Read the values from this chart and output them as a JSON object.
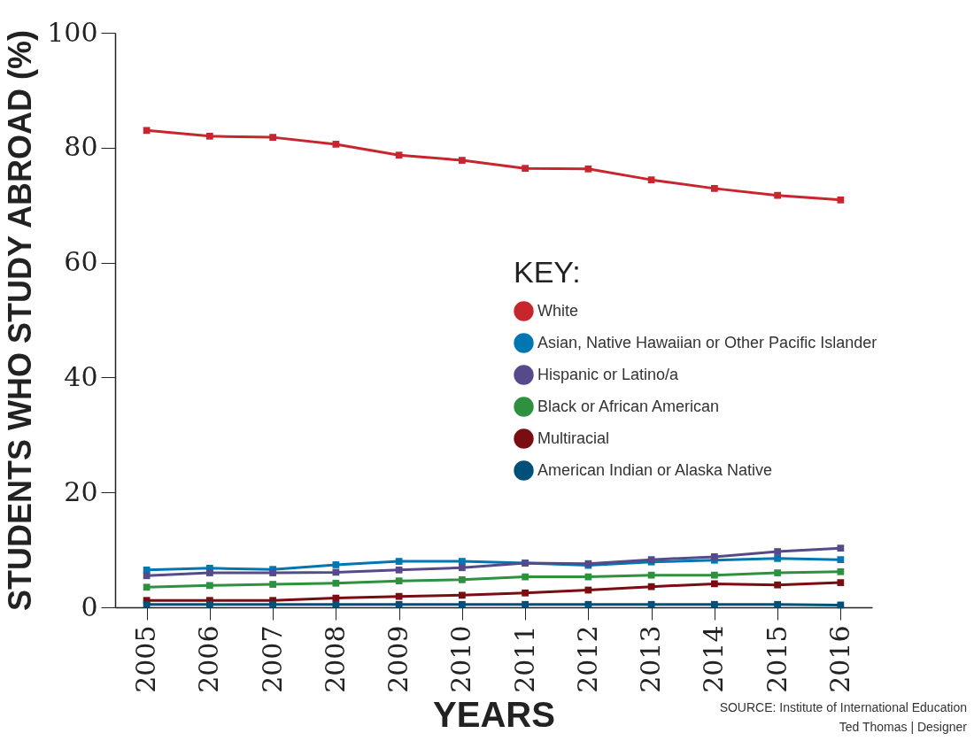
{
  "chart_data": {
    "type": "line",
    "xlabel": "YEARS",
    "ylabel": "STUDENTS WHO STUDY ABROAD (%)",
    "legend_title": "KEY:",
    "categories": [
      "2005",
      "2006",
      "2007",
      "2008",
      "2009",
      "2010",
      "2011",
      "2012",
      "2013",
      "2014",
      "2015",
      "2016"
    ],
    "ylim": [
      0,
      100
    ],
    "yticks": [
      0,
      20,
      40,
      60,
      80,
      100
    ],
    "grid": false,
    "legend": "right",
    "marker": "square",
    "line_style": "solid",
    "series": [
      {
        "name": "White",
        "color": "#c8262e",
        "values": [
          83.0,
          82.0,
          81.8,
          80.6,
          78.7,
          77.8,
          76.4,
          76.3,
          74.4,
          72.9,
          71.7,
          70.9
        ]
      },
      {
        "name": "Asian, Native Hawaiian or Other Pacific Islander",
        "color": "#0077b0",
        "values": [
          6.5,
          6.8,
          6.6,
          7.4,
          8.0,
          8.0,
          7.7,
          7.3,
          7.9,
          8.2,
          8.5,
          8.3
        ]
      },
      {
        "name": "Hispanic or Latino/a",
        "color": "#574a8a",
        "values": [
          5.5,
          6.0,
          6.0,
          6.1,
          6.5,
          6.9,
          7.7,
          7.6,
          8.3,
          8.8,
          9.7,
          10.3
        ]
      },
      {
        "name": "Black or African American",
        "color": "#2e9140",
        "values": [
          3.5,
          3.8,
          4.0,
          4.2,
          4.6,
          4.8,
          5.3,
          5.3,
          5.6,
          5.6,
          6.0,
          6.2
        ]
      },
      {
        "name": "Multiracial",
        "color": "#780d12",
        "values": [
          1.2,
          1.2,
          1.2,
          1.6,
          1.9,
          2.1,
          2.5,
          3.0,
          3.6,
          4.1,
          3.9,
          4.3
        ]
      },
      {
        "name": "American Indian or Alaska Native",
        "color": "#00507a",
        "values": [
          0.5,
          0.5,
          0.5,
          0.5,
          0.5,
          0.5,
          0.5,
          0.5,
          0.5,
          0.5,
          0.5,
          0.4
        ]
      }
    ],
    "annotations": [
      "SOURCE: Institute of International Education",
      "Ted Thomas | Designer"
    ]
  }
}
